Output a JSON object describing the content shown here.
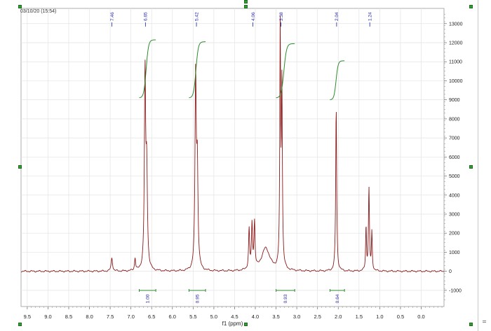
{
  "header": {
    "timestamp": "03/10/20 (15:54)"
  },
  "chart_data": {
    "type": "line",
    "xlabel": "f1 (ppm)",
    "ylabel": "",
    "xlim": [
      9.65,
      -0.55
    ],
    "ylim": [
      -1850,
      13800
    ],
    "x_reversed": true,
    "grid": true,
    "x_ticks": [
      "9.5",
      "9.0",
      "8.5",
      "8.0",
      "7.5",
      "7.0",
      "6.5",
      "6.0",
      "5.5",
      "5.0",
      "4.5",
      "4.0",
      "3.5",
      "3.0",
      "2.5",
      "2.0",
      "1.5",
      "1.0",
      "0.5",
      "0.0"
    ],
    "y_ticks": [
      "13000",
      "12000",
      "11000",
      "10000",
      "9000",
      "8000",
      "7000",
      "6000",
      "5000",
      "4000",
      "3000",
      "2000",
      "1000",
      "0",
      "-1000"
    ],
    "series_color": "#8b1a1a",
    "integral_color": "#2e8b2e",
    "label_color": "#1f1fa8",
    "peak_labels": [
      {
        "ppm": 7.46,
        "text": "7.46"
      },
      {
        "ppm": 6.65,
        "text": "6.65"
      },
      {
        "ppm": 5.42,
        "text": "5.42"
      },
      {
        "ppm": 4.06,
        "text": "4.06"
      },
      {
        "ppm": 3.38,
        "text": "3.38"
      },
      {
        "ppm": 2.04,
        "text": "2.04"
      },
      {
        "ppm": 1.24,
        "text": "1.24"
      }
    ],
    "peaks": [
      {
        "center": 7.46,
        "height": 700,
        "width": 0.02
      },
      {
        "center": 6.9,
        "height": 650,
        "width": 0.015
      },
      {
        "center": 6.66,
        "height": 10100,
        "width": 0.018
      },
      {
        "center": 6.62,
        "height": 5000,
        "width": 0.02
      },
      {
        "center": 5.44,
        "height": 9900,
        "width": 0.018
      },
      {
        "center": 5.4,
        "height": 5200,
        "width": 0.02
      },
      {
        "center": 4.15,
        "height": 2100,
        "width": 0.015
      },
      {
        "center": 4.08,
        "height": 2300,
        "width": 0.015
      },
      {
        "center": 4.02,
        "height": 2400,
        "width": 0.015
      },
      {
        "center": 3.75,
        "height": 1200,
        "width": 0.12
      },
      {
        "center": 3.4,
        "height": 12300,
        "width": 0.012
      },
      {
        "center": 3.36,
        "height": 9500,
        "width": 0.014
      },
      {
        "center": 2.05,
        "height": 8600,
        "width": 0.014
      },
      {
        "center": 1.33,
        "height": 2300,
        "width": 0.012
      },
      {
        "center": 1.26,
        "height": 4300,
        "width": 0.014
      },
      {
        "center": 1.19,
        "height": 2000,
        "width": 0.012
      }
    ],
    "integrals": [
      {
        "from": 6.8,
        "to": 6.4,
        "low": 9100,
        "high": 12150,
        "value": "1.00"
      },
      {
        "from": 5.6,
        "to": 5.2,
        "low": 9100,
        "high": 12050,
        "value": "0.95"
      },
      {
        "from": 3.5,
        "to": 3.05,
        "low": 9100,
        "high": 11950,
        "value": "0.93"
      },
      {
        "from": 2.2,
        "to": 1.85,
        "low": 9000,
        "high": 11050,
        "value": "0.64"
      }
    ]
  }
}
